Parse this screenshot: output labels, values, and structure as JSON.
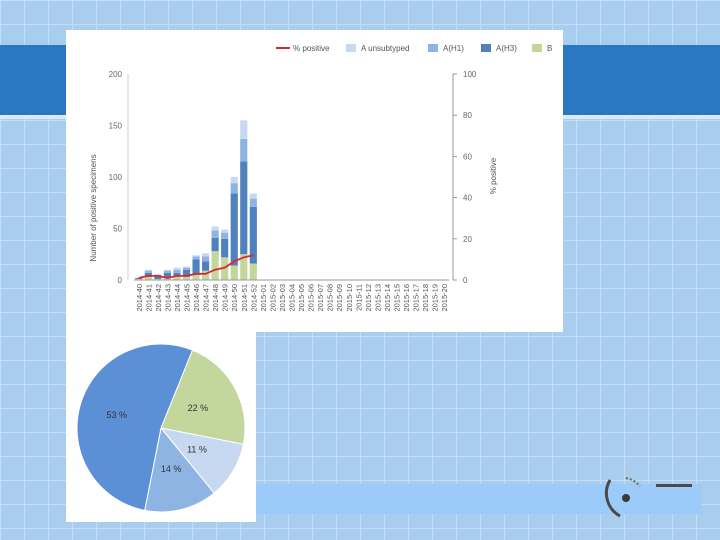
{
  "chart_data": [
    {
      "type": "bar",
      "stacked": true,
      "title": "",
      "xlabel": "",
      "ylabel": "Number of positive specimens",
      "y2label": "% positive",
      "ylim": [
        0,
        200
      ],
      "y2lim": [
        0,
        100
      ],
      "yticks": [
        "0",
        "50",
        "100",
        "150",
        "200"
      ],
      "y2ticks": [
        "0",
        "20",
        "40",
        "60",
        "80",
        "100"
      ],
      "grid": false,
      "legend_position": "top-right",
      "categories": [
        "2014-40",
        "2014-41",
        "2014-42",
        "2014-43",
        "2014-44",
        "2014-45",
        "2014-46",
        "2014-47",
        "2014-48",
        "2014-49",
        "2014-50",
        "2014-51",
        "2014-52",
        "2015-01",
        "2015-02",
        "2015-03",
        "2015-04",
        "2015-05",
        "2015-06",
        "2015-07",
        "2015-08",
        "2015-09",
        "2015-10",
        "2015-11",
        "2015-12",
        "2015-13",
        "2015-14",
        "2015-15",
        "2015-16",
        "2015-17",
        "2015-18",
        "2015-19",
        "2015-20"
      ],
      "series": [
        {
          "name": "B",
          "color": "#c3d69b",
          "values": [
            1,
            3,
            1,
            2,
            3,
            3,
            5,
            9,
            28,
            22,
            14,
            25,
            16,
            0,
            0,
            0,
            0,
            0,
            0,
            0,
            0,
            0,
            0,
            0,
            0,
            0,
            0,
            0,
            0,
            0,
            0,
            0,
            0
          ]
        },
        {
          "name": "A(H3)",
          "color": "#4f81bd",
          "values": [
            1,
            4,
            3,
            5,
            4,
            7,
            15,
            9,
            13,
            18,
            70,
            90,
            55,
            0,
            0,
            0,
            0,
            0,
            0,
            0,
            0,
            0,
            0,
            0,
            0,
            0,
            0,
            0,
            0,
            0,
            0,
            0,
            0
          ]
        },
        {
          "name": "A(H1)",
          "color": "#8eb4e3",
          "values": [
            0,
            2,
            1,
            2,
            3,
            2,
            3,
            5,
            7,
            6,
            10,
            22,
            8,
            0,
            0,
            0,
            0,
            0,
            0,
            0,
            0,
            0,
            0,
            0,
            0,
            0,
            0,
            0,
            0,
            0,
            0,
            0,
            0
          ]
        },
        {
          "name": "A unsubtyped",
          "color": "#c6d9f1",
          "values": [
            0,
            1,
            1,
            1,
            2,
            1,
            1,
            3,
            4,
            3,
            6,
            18,
            5,
            0,
            0,
            0,
            0,
            0,
            0,
            0,
            0,
            0,
            0,
            0,
            0,
            0,
            0,
            0,
            0,
            0,
            0,
            0,
            0
          ]
        }
      ],
      "line_series": {
        "name": "% positive",
        "color": "#d9282e",
        "axis": "right",
        "values": [
          1,
          2,
          2,
          1,
          2,
          2,
          3,
          3,
          5,
          6,
          9,
          11,
          12
        ]
      }
    },
    {
      "type": "pie",
      "slices": [
        {
          "label": "53 %",
          "value": 53,
          "color": "#5b8fd6"
        },
        {
          "label": "22 %",
          "value": 22,
          "color": "#c3d69b"
        },
        {
          "label": "11 %",
          "value": 11,
          "color": "#c6d9f1"
        },
        {
          "label": "14 %",
          "value": 14,
          "color": "#8eb4e3"
        }
      ]
    }
  ]
}
